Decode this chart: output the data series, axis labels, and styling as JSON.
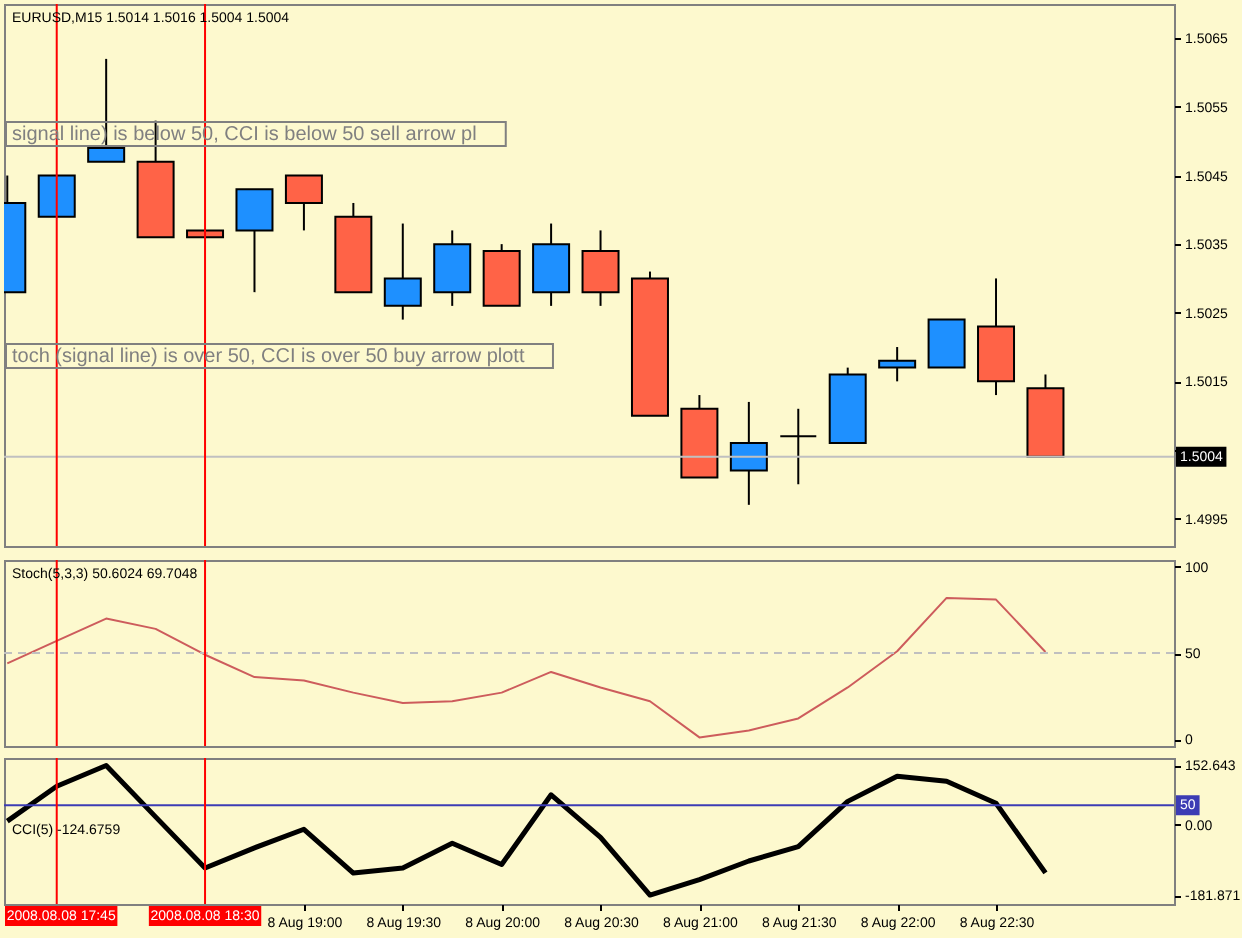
{
  "chart_data": [
    {
      "type": "candlestick",
      "title": "EURUSD,M15 1.5014 1.5016 1.5004 1.5004",
      "x": [
        "2008-08-08T17:30",
        "2008-08-08T17:45",
        "2008-08-08T18:00",
        "2008-08-08T18:15",
        "2008-08-08T18:30",
        "2008-08-08T18:45",
        "2008-08-08T19:00",
        "2008-08-08T19:15",
        "2008-08-08T19:30",
        "2008-08-08T19:45",
        "2008-08-08T20:00",
        "2008-08-08T20:15",
        "2008-08-08T20:30",
        "2008-08-08T20:45",
        "2008-08-08T21:00",
        "2008-08-08T21:15",
        "2008-08-08T21:30",
        "2008-08-08T21:45",
        "2008-08-08T22:00",
        "2008-08-08T22:15",
        "2008-08-08T22:30",
        "2008-08-08T22:45"
      ],
      "ohlc": [
        [
          1.5028,
          1.5045,
          1.5028,
          1.5041
        ],
        [
          1.5039,
          1.5045,
          1.5039,
          1.5045
        ],
        [
          1.5047,
          1.5062,
          1.5047,
          1.5049
        ],
        [
          1.5047,
          1.5053,
          1.5036,
          1.5036
        ],
        [
          1.5037,
          1.5037,
          1.5036,
          1.5036
        ],
        [
          1.5037,
          1.5043,
          1.5028,
          1.5043
        ],
        [
          1.5045,
          1.5045,
          1.5037,
          1.5041
        ],
        [
          1.5039,
          1.5041,
          1.5028,
          1.5028
        ],
        [
          1.5026,
          1.5038,
          1.5024,
          1.503
        ],
        [
          1.5028,
          1.5037,
          1.5026,
          1.5035
        ],
        [
          1.5034,
          1.5035,
          1.5026,
          1.5026
        ],
        [
          1.5028,
          1.5038,
          1.5026,
          1.5035
        ],
        [
          1.5034,
          1.5037,
          1.5026,
          1.5028
        ],
        [
          1.503,
          1.5031,
          1.501,
          1.501
        ],
        [
          1.5011,
          1.5013,
          1.5001,
          1.5001
        ],
        [
          1.5002,
          1.5012,
          1.4997,
          1.5006
        ],
        [
          1.5007,
          1.5011,
          1.5,
          1.5007
        ],
        [
          1.5006,
          1.5017,
          1.5006,
          1.5016
        ],
        [
          1.5017,
          1.502,
          1.5015,
          1.5018
        ],
        [
          1.5017,
          1.5024,
          1.5017,
          1.5024
        ],
        [
          1.5023,
          1.503,
          1.5013,
          1.5015
        ],
        [
          1.5014,
          1.5016,
          1.5004,
          1.5004
        ]
      ],
      "colors": [
        "#1e90ff",
        "#1e90ff",
        "#1e90ff",
        "#ff6347",
        "#ff6347",
        "#1e90ff",
        "#ff6347",
        "#ff6347",
        "#1e90ff",
        "#1e90ff",
        "#ff6347",
        "#1e90ff",
        "#ff6347",
        "#ff6347",
        "#ff6347",
        "#1e90ff",
        "#000000",
        "#1e90ff",
        "#1e90ff",
        "#1e90ff",
        "#ff6347",
        "#ff6347"
      ],
      "xlim": [
        "2008-08-08T17:29",
        "2008-08-08T23:24"
      ],
      "ylim": [
        1.4991,
        1.507
      ],
      "yticks": [
        1.4995,
        {
          "value": 1.5005,
          "label": null
        },
        1.5015,
        1.5025,
        1.5035,
        1.5045,
        1.5055,
        1.5065
      ],
      "tick_labels": "y",
      "ref_lines": [
        {
          "axis": "y",
          "value": 1.5004,
          "label": "1.5004",
          "color": "#c0c0c0"
        },
        {
          "axis": "x",
          "value": "2008-08-08T17:45",
          "color": "#ff0000"
        },
        {
          "axis": "x",
          "value": "2008-08-08T18:30",
          "color": "#ff0000"
        }
      ],
      "annotations": [
        "signal line) is below 50, CCI is below 50 sell arrow pl",
        "toch (signal line) is over 50, CCI is over 50 buy arrow plott"
      ]
    },
    {
      "type": "line",
      "title": "Stoch(5,3,3) 50.6024 69.7048",
      "x": [
        "2008-08-08T17:30",
        "2008-08-08T17:45",
        "2008-08-08T18:00",
        "2008-08-08T18:15",
        "2008-08-08T18:30",
        "2008-08-08T18:45",
        "2008-08-08T19:00",
        "2008-08-08T19:15",
        "2008-08-08T19:30",
        "2008-08-08T19:45",
        "2008-08-08T20:00",
        "2008-08-08T20:15",
        "2008-08-08T20:30",
        "2008-08-08T20:45",
        "2008-08-08T21:00",
        "2008-08-08T21:15",
        "2008-08-08T21:30",
        "2008-08-08T21:45",
        "2008-08-08T22:00",
        "2008-08-08T22:15",
        "2008-08-08T22:30",
        "2008-08-08T22:45"
      ],
      "series": [
        {
          "color": "#cd5c5c",
          "values": [
            44,
            57,
            70,
            64,
            49,
            36,
            34,
            27,
            21,
            22,
            27,
            39,
            30,
            22,
            1,
            5,
            12,
            30,
            51,
            82,
            81,
            50.6
          ]
        }
      ],
      "xlim": [
        "2008-08-08T17:29",
        "2008-08-08T23:24"
      ],
      "ylim": [
        -4,
        104
      ],
      "yticks": [
        0,
        50,
        100
      ],
      "tick_labels": "y",
      "ref_lines": [
        {
          "axis": "y",
          "value": 50,
          "color": "#c0c0c0",
          "line_style": "dashed"
        },
        {
          "axis": "x",
          "value": "2008-08-08T17:45",
          "color": "#ff0000"
        },
        {
          "axis": "x",
          "value": "2008-08-08T18:30",
          "color": "#ff0000"
        }
      ]
    },
    {
      "type": "line",
      "title": "CCI(5) -124.6759",
      "x": [
        "2008-08-08T17:30",
        "2008-08-08T17:45",
        "2008-08-08T18:00",
        "2008-08-08T18:15",
        "2008-08-08T18:30",
        "2008-08-08T18:45",
        "2008-08-08T19:00",
        "2008-08-08T19:15",
        "2008-08-08T19:30",
        "2008-08-08T19:45",
        "2008-08-08T20:00",
        "2008-08-08T20:15",
        "2008-08-08T20:30",
        "2008-08-08T20:45",
        "2008-08-08T21:00",
        "2008-08-08T21:15",
        "2008-08-08T21:30",
        "2008-08-08T21:45",
        "2008-08-08T22:00",
        "2008-08-08T22:15",
        "2008-08-08T22:30",
        "2008-08-08T22:45"
      ],
      "series": [
        {
          "color": "#000000",
          "values": [
            9,
            99,
            152.643,
            20,
            -112,
            -60,
            -12,
            -125,
            -112,
            -48,
            -103,
            77,
            -33,
            -181.871,
            -142,
            -94,
            -57,
            60,
            125,
            112,
            55,
            -124.7
          ]
        }
      ],
      "xlim": [
        "2008-08-08T17:29",
        "2008-08-08T23:24"
      ],
      "xticks": [
        {
          "value": "2008-08-08T19:00",
          "label": "8 Aug 19:00"
        },
        {
          "value": "2008-08-08T19:30",
          "label": "8 Aug 19:30"
        },
        {
          "value": "2008-08-08T20:00",
          "label": "8 Aug 20:00"
        },
        {
          "value": "2008-08-08T20:30",
          "label": "8 Aug 20:30"
        },
        {
          "value": "2008-08-08T21:00",
          "label": "8 Aug 21:00"
        },
        {
          "value": "2008-08-08T21:30",
          "label": "8 Aug 21:30"
        },
        {
          "value": "2008-08-08T22:00",
          "label": "8 Aug 22:00"
        },
        {
          "value": "2008-08-08T22:30",
          "label": "8 Aug 22:30"
        }
      ],
      "ylim": [
        -205,
        172
      ],
      "yticks": [
        -181.871,
        {
          "value": 0,
          "label": "0.00"
        },
        152.643
      ],
      "ref_lines": [
        {
          "axis": "y",
          "value": 50,
          "label": "50",
          "color": "#3c3cb4"
        },
        {
          "axis": "x",
          "value": "2008-08-08T17:45",
          "label": "2008.08.08 17:45",
          "color": "#ff0000"
        },
        {
          "axis": "x",
          "value": "2008-08-08T18:30",
          "label": "2008.08.08 18:30",
          "color": "#ff0000"
        }
      ]
    }
  ]
}
